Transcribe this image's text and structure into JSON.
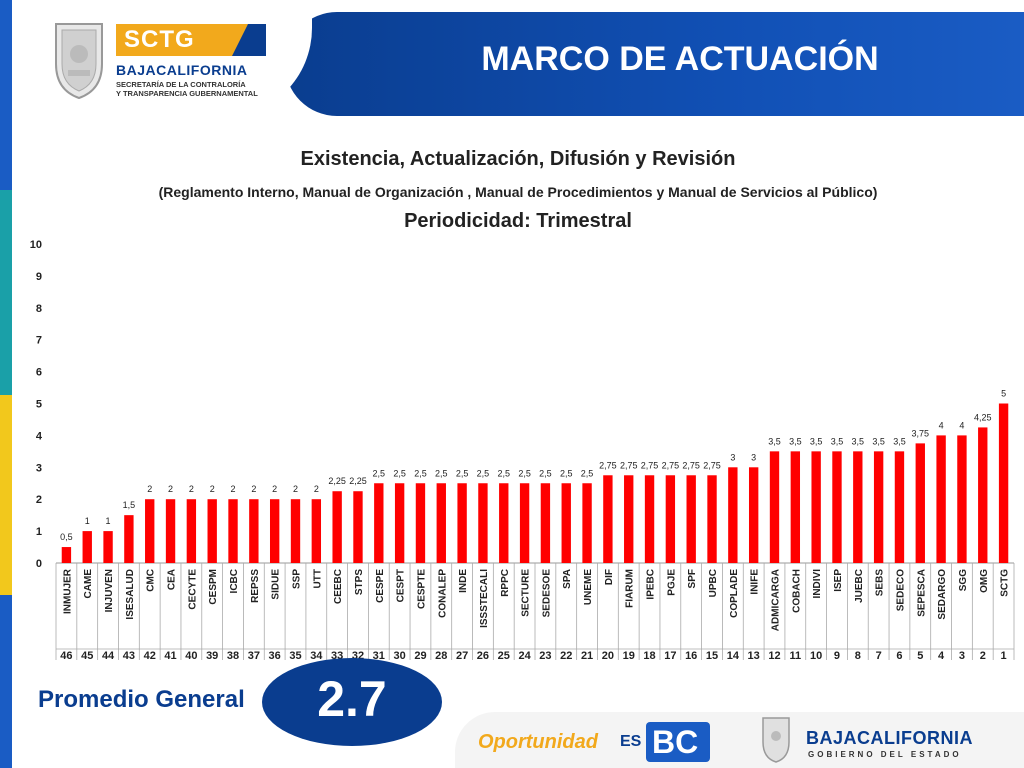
{
  "header": {
    "title": "MARCO DE ACTUACIÓN",
    "logo_badge": "SCTG",
    "logo_name": "BAJACALIFORNIA",
    "logo_sub1": "SECRETARÍA DE LA CONTRALORÍA",
    "logo_sub2": "Y TRANSPARENCIA GUBERNAMENTAL"
  },
  "colors": {
    "accent_blue": "#0a3d8f",
    "bar_red": "#ff0000",
    "accent_orange": "#f2a91c",
    "stripe": [
      "#1a5cc4",
      "#1aa0a8",
      "#f2c81c",
      "#1a5cc4"
    ]
  },
  "summary": {
    "label": "Promedio General",
    "value": "2.7"
  },
  "footer": {
    "slogan": "Oportunidad",
    "es": "ES",
    "bc": "BC",
    "brand": "BAJACALIFORNIA",
    "brand_sub": "GOBIERNO DEL ESTADO"
  },
  "chart_data": {
    "type": "bar",
    "title": "Existencia, Actualización, Difusión y Revisión",
    "subtitle": "(Reglamento Interno, Manual de Organización , Manual de Procedimientos  y Manual de Servicios al Público)",
    "subtitle2": "Periodicidad: Trimestral",
    "ylim": [
      0,
      10
    ],
    "yticks": [
      "0",
      "1",
      "2",
      "3",
      "4",
      "5",
      "6",
      "7",
      "8",
      "9",
      "10"
    ],
    "grid": false,
    "categories": [
      "INMUJER",
      "CAME",
      "INJUVEN",
      "ISESALUD",
      "CMC",
      "CEA",
      "CECYTE",
      "CESPM",
      "ICBC",
      "REPSS",
      "SIDUE",
      "SSP",
      "UTT",
      "CEEBC",
      "STPS",
      "CESPE",
      "CESPT",
      "CESPTE",
      "CONALEP",
      "INDE",
      "ISSSTECALI",
      "RPPC",
      "SECTURE",
      "SEDESOE",
      "SPA",
      "UNEME",
      "DIF",
      "FIARUM",
      "IPEBC",
      "PGJE",
      "SPF",
      "UPBC",
      "COPLADE",
      "INIFE",
      "ADMICARGA",
      "COBACH",
      "INDIVI",
      "ISEP",
      "JUEBC",
      "SEBS",
      "SEDECO",
      "SEPESCA",
      "SEDARGO",
      "SGG",
      "OMG",
      "SCTG"
    ],
    "ranks": [
      "46",
      "45",
      "44",
      "43",
      "42",
      "41",
      "40",
      "39",
      "38",
      "37",
      "36",
      "35",
      "34",
      "33",
      "32",
      "31",
      "30",
      "29",
      "28",
      "27",
      "26",
      "25",
      "24",
      "23",
      "22",
      "21",
      "20",
      "19",
      "18",
      "17",
      "16",
      "15",
      "14",
      "13",
      "12",
      "11",
      "10",
      "9",
      "8",
      "7",
      "6",
      "5",
      "4",
      "3",
      "2",
      "1"
    ],
    "values": [
      0.5,
      1,
      1,
      1.5,
      2,
      2,
      2,
      2,
      2,
      2,
      2,
      2,
      2,
      2.25,
      2.25,
      2.5,
      2.5,
      2.5,
      2.5,
      2.5,
      2.5,
      2.5,
      2.5,
      2.5,
      2.5,
      2.5,
      2.75,
      2.75,
      2.75,
      2.75,
      2.75,
      2.75,
      3,
      3,
      3.5,
      3.5,
      3.5,
      3.5,
      3.5,
      3.5,
      3.5,
      3.75,
      4,
      4,
      4.25,
      5
    ],
    "labels": [
      "0,5",
      "1",
      "1",
      "1,5",
      "2",
      "2",
      "2",
      "2",
      "2",
      "2",
      "2",
      "2",
      "2",
      "2,25",
      "2,25",
      "2,5",
      "2,5",
      "2,5",
      "2,5",
      "2,5",
      "2,5",
      "2,5",
      "2,5",
      "2,5",
      "2,5",
      "2,5",
      "2,75",
      "2,75",
      "2,75",
      "2,75",
      "2,75",
      "2,75",
      "3",
      "3",
      "3,5",
      "3,5",
      "3,5",
      "3,5",
      "3,5",
      "3,5",
      "3,5",
      "3,75",
      "4",
      "4",
      "4,25",
      "5"
    ]
  }
}
